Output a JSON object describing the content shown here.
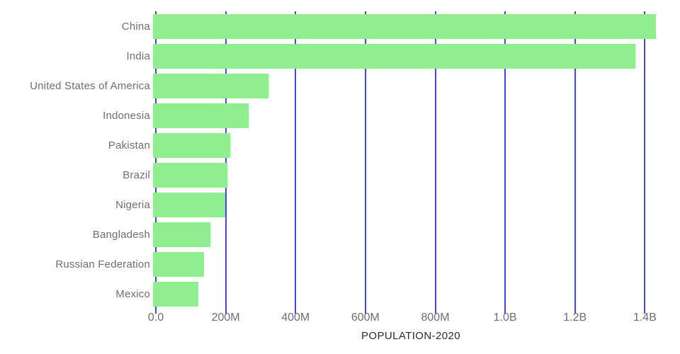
{
  "chart_data": {
    "type": "bar",
    "orientation": "horizontal",
    "title": "",
    "xlabel": "POPULATION-2020",
    "ylabel": "",
    "categories": [
      "China",
      "India",
      "United States of America",
      "Indonesia",
      "Pakistan",
      "Brazil",
      "Nigeria",
      "Bangladesh",
      "Russian Federation",
      "Mexico"
    ],
    "series": [
      {
        "name": "Population 2020",
        "values_millions": [
          1439.3,
          1380.0,
          331.0,
          273.5,
          220.9,
          212.6,
          206.1,
          164.7,
          145.9,
          128.9
        ]
      }
    ],
    "x_ticks": [
      {
        "value_millions": 0,
        "label": "0.0"
      },
      {
        "value_millions": 200,
        "label": "200M"
      },
      {
        "value_millions": 400,
        "label": "400M"
      },
      {
        "value_millions": 600,
        "label": "600M"
      },
      {
        "value_millions": 800,
        "label": "800M"
      },
      {
        "value_millions": 1000,
        "label": "1.0B"
      },
      {
        "value_millions": 1200,
        "label": "1.2B"
      },
      {
        "value_millions": 1400,
        "label": "1.4B"
      }
    ],
    "xlim_millions": [
      0,
      1460
    ],
    "grid": "vertical",
    "legend": "none",
    "colors": {
      "bar": "#90EE90",
      "gridline": "#4444e8",
      "tick_label": "#6e6e6e",
      "category_label": "#6e6e6e",
      "axis_title": "#2b2b2b",
      "background": "#ffffff"
    }
  }
}
